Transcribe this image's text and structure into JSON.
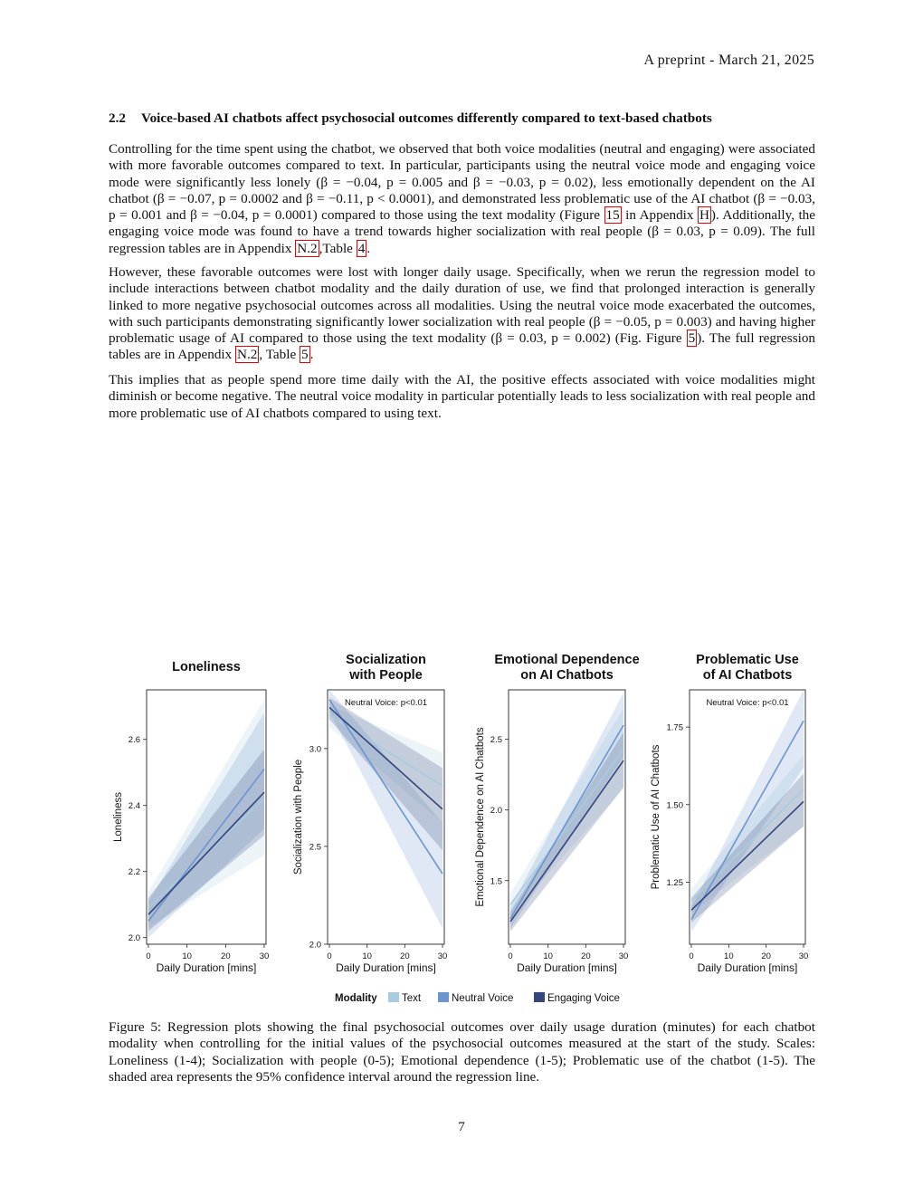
{
  "header": {
    "running_head": "A preprint - March 21, 2025"
  },
  "section": {
    "number": "2.2",
    "title": "Voice-based AI chatbots affect psychosocial outcomes differently compared to text-based chatbots"
  },
  "paragraphs": {
    "p1_a": "Controlling for the time spent using the chatbot, we observed that both voice modalities (neutral and engaging) were associated with more favorable outcomes compared to text. In particular, participants using the neutral voice mode and engaging voice mode were significantly less lonely (β = −0.04, p = 0.005 and β = −0.03, p = 0.02), less emotionally dependent on the AI chatbot (β = −0.07, p = 0.0002 and β = −0.11, p < 0.0001), and demonstrated less problematic use of the AI chatbot (β = −0.03, p = 0.001 and β = −0.04, p = 0.0001) compared to those using the text modality (Figure ",
    "p1_ref1": "15",
    "p1_b": " in Appendix ",
    "p1_ref2": "H",
    "p1_c": "). Additionally, the engaging voice mode was found to have a trend towards higher socialization with real people (β = 0.03, p = 0.09). The full regression tables are in Appendix ",
    "p1_ref3": "N.2",
    "p1_d": ",Table ",
    "p1_ref4": "4",
    "p1_e": ".",
    "p2_a": "However, these favorable outcomes were lost with longer daily usage. Specifically, when we rerun the regression model to include interactions between chatbot modality and the daily duration of use, we find that prolonged interaction is generally linked to more negative psychosocial outcomes across all modalities. Using the neutral voice mode exacerbated the outcomes, with such participants demonstrating significantly lower socialization with real people (β = −0.05, p = 0.003) and having higher problematic usage of AI compared to those using the text modality (β = 0.03, p = 0.002) (Fig. Figure ",
    "p2_ref1": "5",
    "p2_b": "). The full regression tables are in Appendix ",
    "p2_ref2": "N.2",
    "p2_c": ", Table ",
    "p2_ref3": "5",
    "p2_d": ".",
    "p3": "This implies that as people spend more time daily with the AI, the positive effects associated with voice modalities might diminish or become negative. The neutral voice modality in particular potentially leads to less socialization with real people and more problematic use of AI chatbots compared to using text."
  },
  "caption": "Figure 5: Regression plots showing the final psychosocial outcomes over daily usage duration (minutes) for each chatbot modality when controlling for the initial values of the psychosocial outcomes measured at the start of the study. Scales: Loneliness (1-4); Socialization with people (0-5); Emotional dependence (1-5); Problematic use of the chatbot (1-5). The shaded area represents the 95% confidence interval around the regression line.",
  "page_number": "7",
  "legend": {
    "title": "Modality",
    "items": [
      {
        "label": "Text",
        "color": "#a9cbe0"
      },
      {
        "label": "Neutral Voice",
        "color": "#6c95cf"
      },
      {
        "label": "Engaging Voice",
        "color": "#34467c"
      }
    ]
  },
  "chart_data": [
    {
      "type": "line",
      "title": "Loneliness",
      "xlabel": "Daily Duration [mins]",
      "ylabel": "Loneliness",
      "xlim": [
        0,
        30
      ],
      "ylim": [
        1.98,
        2.75
      ],
      "xticks": [
        "0",
        "10",
        "20",
        "30"
      ],
      "yticks": [
        {
          "v": 2.0,
          "label": "2.0"
        },
        {
          "v": 2.2,
          "label": "2.2"
        },
        {
          "v": 2.4,
          "label": "2.4"
        },
        {
          "v": 2.6,
          "label": "2.6"
        }
      ],
      "annotation": "",
      "series": [
        {
          "name": "Text",
          "x": [
            0,
            30
          ],
          "y": [
            2.09,
            2.42
          ],
          "ci_lower": [
            2.03,
            2.25
          ],
          "ci_upper": [
            2.14,
            2.72
          ]
        },
        {
          "name": "Neutral Voice",
          "x": [
            0,
            30
          ],
          "y": [
            2.05,
            2.51
          ],
          "ci_lower": [
            2.0,
            2.33
          ],
          "ci_upper": [
            2.11,
            2.68
          ]
        },
        {
          "name": "Engaging Voice",
          "x": [
            0,
            30
          ],
          "y": [
            2.07,
            2.44
          ],
          "ci_lower": [
            2.02,
            2.31
          ],
          "ci_upper": [
            2.12,
            2.57
          ]
        }
      ]
    },
    {
      "type": "line",
      "title": "Socialization with People",
      "xlabel": "Daily Duration [mins]",
      "ylabel": "Socialization with People",
      "xlim": [
        0,
        30
      ],
      "ylim": [
        2.0,
        3.3
      ],
      "xticks": [
        "0",
        "10",
        "20",
        "30"
      ],
      "yticks": [
        {
          "v": 2.0,
          "label": "2.0"
        },
        {
          "v": 2.5,
          "label": "2.5"
        },
        {
          "v": 3.0,
          "label": "3.0"
        }
      ],
      "annotation": "Neutral Voice: p<0.01",
      "series": [
        {
          "name": "Text",
          "x": [
            0,
            30
          ],
          "y": [
            3.17,
            2.81
          ],
          "ci_lower": [
            3.11,
            2.62
          ],
          "ci_upper": [
            3.22,
            2.98
          ]
        },
        {
          "name": "Neutral Voice",
          "x": [
            0,
            30
          ],
          "y": [
            3.25,
            2.36
          ],
          "ci_lower": [
            3.19,
            2.08
          ],
          "ci_upper": [
            3.3,
            2.62
          ]
        },
        {
          "name": "Engaging Voice",
          "x": [
            0,
            30
          ],
          "y": [
            3.21,
            2.69
          ],
          "ci_lower": [
            3.15,
            2.48
          ],
          "ci_upper": [
            3.26,
            2.9
          ]
        }
      ]
    },
    {
      "type": "line",
      "title": "Emotional Dependence on AI Chatbots",
      "xlabel": "Daily Duration [mins]",
      "ylabel": "Emotional Dependence on AI Chatbots",
      "xlim": [
        0,
        30
      ],
      "ylim": [
        1.05,
        2.85
      ],
      "xticks": [
        "0",
        "10",
        "20",
        "30"
      ],
      "yticks": [
        {
          "v": 1.5,
          "label": "1.5"
        },
        {
          "v": 2.0,
          "label": "2.0"
        },
        {
          "v": 2.5,
          "label": "2.5"
        }
      ],
      "annotation": "",
      "series": [
        {
          "name": "Text",
          "x": [
            0,
            30
          ],
          "y": [
            1.33,
            2.43
          ],
          "ci_lower": [
            1.25,
            2.15
          ],
          "ci_upper": [
            1.41,
            2.72
          ]
        },
        {
          "name": "Neutral Voice",
          "x": [
            0,
            30
          ],
          "y": [
            1.23,
            2.6
          ],
          "ci_lower": [
            1.16,
            2.38
          ],
          "ci_upper": [
            1.31,
            2.83
          ]
        },
        {
          "name": "Engaging Voice",
          "x": [
            0,
            30
          ],
          "y": [
            1.21,
            2.35
          ],
          "ci_lower": [
            1.14,
            2.16
          ],
          "ci_upper": [
            1.28,
            2.55
          ]
        }
      ]
    },
    {
      "type": "line",
      "title": "Problematic Use of AI Chatbots",
      "xlabel": "Daily Duration [mins]",
      "ylabel": "Problematic Use of AI Chatbots",
      "xlim": [
        0,
        30
      ],
      "ylim": [
        1.05,
        1.87
      ],
      "xticks": [
        "0",
        "10",
        "20",
        "30"
      ],
      "yticks": [
        {
          "v": 1.25,
          "label": "1.25"
        },
        {
          "v": 1.5,
          "label": "1.50"
        },
        {
          "v": 1.75,
          "label": "1.75"
        }
      ],
      "annotation": "Neutral Voice: p<0.01",
      "series": [
        {
          "name": "Text",
          "x": [
            0,
            30
          ],
          "y": [
            1.19,
            1.55
          ],
          "ci_lower": [
            1.15,
            1.43
          ],
          "ci_upper": [
            1.23,
            1.66
          ]
        },
        {
          "name": "Neutral Voice",
          "x": [
            0,
            30
          ],
          "y": [
            1.13,
            1.77
          ],
          "ci_lower": [
            1.09,
            1.62
          ],
          "ci_upper": [
            1.17,
            1.87
          ]
        },
        {
          "name": "Engaging Voice",
          "x": [
            0,
            30
          ],
          "y": [
            1.16,
            1.51
          ],
          "ci_lower": [
            1.12,
            1.43
          ],
          "ci_upper": [
            1.2,
            1.6
          ]
        }
      ]
    }
  ]
}
